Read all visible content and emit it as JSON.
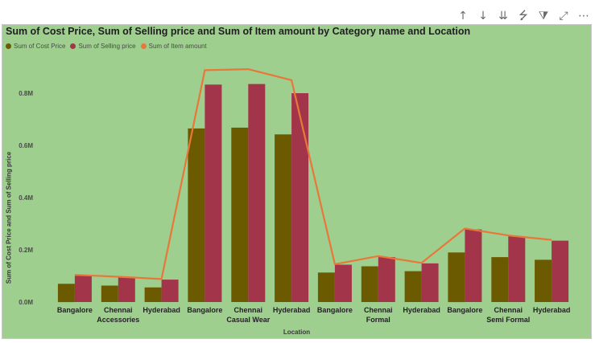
{
  "toolbar": [
    {
      "name": "drill-up-icon",
      "glyph": "↑"
    },
    {
      "name": "drill-down-icon",
      "glyph": "↓"
    },
    {
      "name": "expand-next-level-icon",
      "glyph": "⇊"
    },
    {
      "name": "expand-hierarchy-icon",
      "glyph": "⭍"
    },
    {
      "name": "filter-icon",
      "glyph": "⧩"
    },
    {
      "name": "focus-mode-icon",
      "glyph": "⤢"
    },
    {
      "name": "more-options-icon",
      "glyph": "⋯"
    }
  ],
  "chart_data": {
    "type": "bar",
    "title": "Sum of Cost Price, Sum of Selling price and Sum of Item amount by Category name and Location",
    "xlabel": "Location",
    "ylabel": "Sum of Cost Price and Sum of Selling price",
    "ylim": [
      0,
      1000000
    ],
    "yticks": [
      {
        "value": 0,
        "label": "0.0M"
      },
      {
        "value": 200000,
        "label": "0.2M"
      },
      {
        "value": 400000,
        "label": "0.4M"
      },
      {
        "value": 600000,
        "label": "0.6M"
      },
      {
        "value": 800000,
        "label": "0.8M"
      }
    ],
    "grid": false,
    "legend_position": "top-left",
    "groups": [
      {
        "name": "Accessories",
        "span": 3
      },
      {
        "name": "Casual Wear",
        "span": 3
      },
      {
        "name": "Formal",
        "span": 3
      },
      {
        "name": "Semi Formal",
        "span": 3
      }
    ],
    "categories": [
      "Bangalore",
      "Chennai",
      "Hyderabad",
      "Bangalore",
      "Chennai",
      "Hyderabad",
      "Bangalore",
      "Chennai",
      "Hyderabad",
      "Bangalore",
      "Chennai",
      "Hyderabad"
    ],
    "series": [
      {
        "name": "Sum of Cost Price",
        "kind": "bar",
        "color": "#6b5a00",
        "values": [
          70000,
          63000,
          56000,
          665000,
          668000,
          642000,
          113000,
          137000,
          118000,
          190000,
          172000,
          162000
        ]
      },
      {
        "name": "Sum of Selling price",
        "kind": "bar",
        "color": "#a3354a",
        "values": [
          101000,
          95000,
          86000,
          833000,
          835000,
          800000,
          143000,
          172000,
          148000,
          278000,
          252000,
          235000
        ]
      },
      {
        "name": "Sum of Item amount",
        "kind": "line",
        "color": "#e8773a",
        "values": [
          104000,
          97000,
          88000,
          888000,
          892000,
          850000,
          145000,
          176000,
          150000,
          282000,
          255000,
          238000
        ]
      }
    ]
  }
}
